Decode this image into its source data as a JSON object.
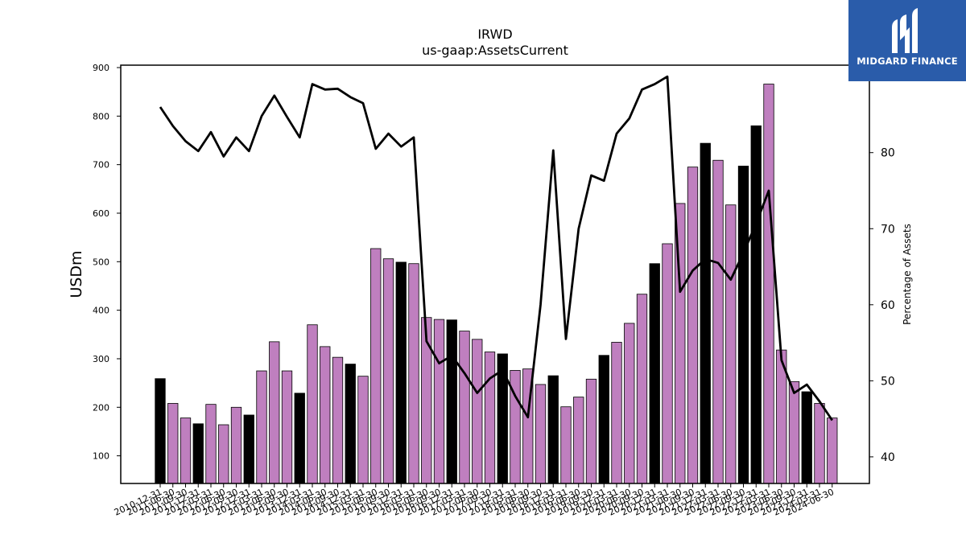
{
  "chart_data": {
    "type": "bar",
    "title": "IRWD",
    "subtitle": "us-gaap:AssetsCurrent",
    "ylabel": "USDm",
    "y2label": "Percentage of Assets",
    "ylim": [
      43,
      905
    ],
    "y2lim": [
      36.5,
      91.5
    ],
    "yticks": [
      100,
      200,
      300,
      400,
      500,
      600,
      700,
      800,
      900
    ],
    "y2ticks": [
      40,
      50,
      60,
      70,
      80,
      90
    ],
    "colors": {
      "q4_bar": "#000000",
      "bar": "#bf7fbf",
      "line": "#000000"
    },
    "categories": [
      "2010-12-31",
      "2011-06-30",
      "2011-09-30",
      "2011-12-31",
      "2012-03-31",
      "2012-06-30",
      "2012-09-30",
      "2012-12-31",
      "2013-03-31",
      "2013-06-30",
      "2013-09-30",
      "2013-12-31",
      "2014-03-31",
      "2014-06-30",
      "2014-09-30",
      "2014-12-31",
      "2015-03-31",
      "2015-06-30",
      "2015-09-30",
      "2015-12-31",
      "2016-03-31",
      "2016-06-30",
      "2016-09-30",
      "2016-12-31",
      "2017-03-31",
      "2017-06-30",
      "2017-09-30",
      "2017-12-31",
      "2018-03-31",
      "2018-06-30",
      "2018-09-30",
      "2018-12-31",
      "2019-03-31",
      "2019-06-30",
      "2019-09-30",
      "2019-12-31",
      "2020-03-31",
      "2020-06-30",
      "2020-09-30",
      "2020-12-31",
      "2021-03-31",
      "2021-06-30",
      "2021-09-30",
      "2021-12-31",
      "2022-03-31",
      "2022-06-30",
      "2022-09-30",
      "2022-12-31",
      "2023-03-31",
      "2023-06-30",
      "2023-09-30",
      "2023-12-31",
      "2024-03-31",
      "2024-06-30"
    ],
    "series": [
      {
        "values": [
          259,
          208,
          178,
          166,
          206,
          164,
          200,
          184,
          275,
          335,
          275,
          229,
          370,
          325,
          303,
          289,
          264,
          527,
          506,
          499,
          496,
          385,
          381,
          380,
          357,
          340,
          314,
          310,
          276,
          279,
          247,
          265,
          201,
          221,
          258,
          307,
          334,
          373,
          433,
          496,
          537,
          620,
          695,
          744,
          709,
          617,
          697,
          780,
          866,
          318,
          253,
          232,
          208,
          178
        ]
      },
      {
        "values": [
          86.0,
          83.5,
          81.5,
          80.2,
          82.7,
          79.5,
          82.0,
          80.2,
          84.8,
          87.5,
          84.7,
          82.0,
          89.0,
          88.3,
          88.4,
          87.3,
          86.5,
          80.5,
          82.5,
          80.8,
          82.0,
          55.2,
          52.3,
          53.3,
          51.0,
          48.4,
          50.3,
          51.4,
          48.0,
          45.2,
          60.0,
          80.3,
          55.5,
          70.0,
          77.0,
          76.3,
          82.5,
          84.5,
          88.3,
          89.0,
          90.0,
          61.7,
          64.5,
          66.0,
          65.5,
          63.3,
          66.8,
          70.7,
          75.0,
          52.7,
          48.4,
          49.5,
          47.3,
          44.8
        ]
      }
    ]
  },
  "logo": {
    "text": "MIDGARD FINANCE"
  }
}
